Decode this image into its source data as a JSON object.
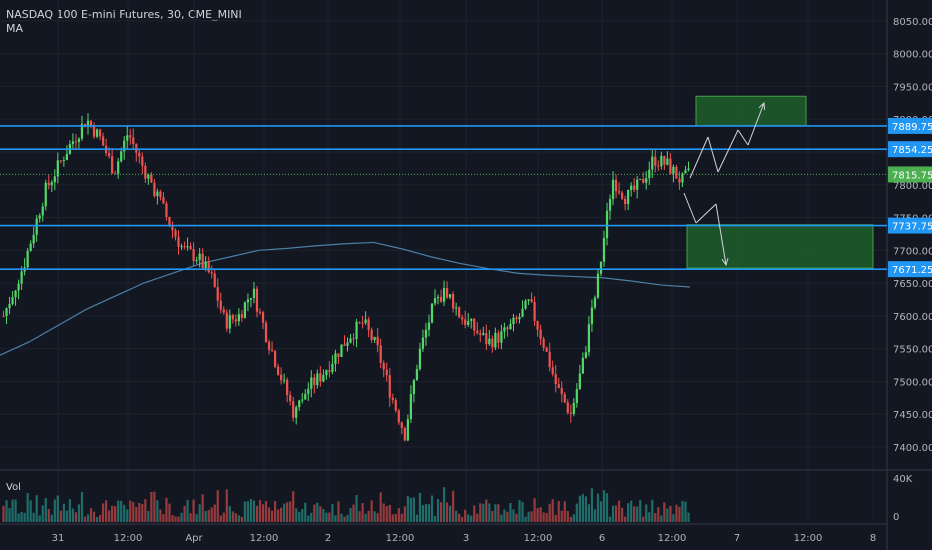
{
  "header": {
    "title": "NASDAQ 100 E-mini Futures, 30, CME_MINI",
    "indicator": "MA"
  },
  "volume_label": "Vol",
  "colors": {
    "background": "#131722",
    "up": "#26a69a",
    "up_bright": "#53d769",
    "down": "#ef5350",
    "level_line": "#2196f3",
    "ma_line": "#4a7fa6",
    "zone_fill": "#1e5e2a",
    "zone_border": "#43a047",
    "current_price_line": "#4caf50",
    "axis_text": "#b2b5be",
    "grid": "#1e222d"
  },
  "chart_data": {
    "type": "candlestick",
    "y_ticks": [
      "8050.00",
      "8000.00",
      "7950.00",
      "7900.00",
      "7850.00",
      "7800.00",
      "7750.00",
      "7700.00",
      "7650.00",
      "7600.00",
      "7550.00",
      "7500.00",
      "7450.00",
      "7400.00"
    ],
    "ylim": [
      7370,
      8075
    ],
    "x_ticks": [
      "31",
      "12:00",
      "Apr",
      "12:00",
      "2",
      "12:00",
      "3",
      "12:00",
      "6",
      "12:00",
      "7",
      "12:00",
      "8"
    ],
    "levels": [
      {
        "label": "7889.75",
        "value": 7889.75
      },
      {
        "label": "7854.25",
        "value": 7854.25
      },
      {
        "label": "7737.75",
        "value": 7737.75
      },
      {
        "label": "7671.25",
        "value": 7671.25
      }
    ],
    "current_price": {
      "label": "7815.75",
      "value": 7815.75
    },
    "zones": [
      {
        "from": 7890,
        "to": 7935
      },
      {
        "from": 7673,
        "to": 7739
      }
    ],
    "volume_ticks": [
      "40K",
      "0"
    ],
    "ma_values": [
      7540,
      7560,
      7585,
      7610,
      7630,
      7650,
      7665,
      7680,
      7690,
      7700,
      7703,
      7707,
      7710,
      7712,
      7702,
      7690,
      7680,
      7672,
      7665,
      7662,
      7660,
      7658,
      7653,
      7647,
      7644
    ],
    "price_path": [
      [
        0,
        7600
      ],
      [
        3,
        7680
      ],
      [
        6,
        7790
      ],
      [
        9,
        7850
      ],
      [
        12,
        7900
      ],
      [
        14,
        7870
      ],
      [
        16,
        7820
      ],
      [
        18,
        7880
      ],
      [
        20,
        7830
      ],
      [
        22,
        7790
      ],
      [
        24,
        7740
      ],
      [
        26,
        7700
      ],
      [
        28,
        7690
      ],
      [
        30,
        7660
      ],
      [
        32,
        7590
      ],
      [
        34,
        7600
      ],
      [
        36,
        7640
      ],
      [
        38,
        7570
      ],
      [
        40,
        7510
      ],
      [
        42,
        7450
      ],
      [
        44,
        7490
      ],
      [
        46,
        7510
      ],
      [
        48,
        7540
      ],
      [
        50,
        7570
      ],
      [
        52,
        7590
      ],
      [
        54,
        7550
      ],
      [
        56,
        7480
      ],
      [
        58,
        7420
      ],
      [
        60,
        7540
      ],
      [
        62,
        7610
      ],
      [
        64,
        7640
      ],
      [
        66,
        7600
      ],
      [
        68,
        7580
      ],
      [
        70,
        7560
      ],
      [
        72,
        7570
      ],
      [
        74,
        7590
      ],
      [
        76,
        7620
      ],
      [
        78,
        7560
      ],
      [
        80,
        7490
      ],
      [
        82,
        7450
      ],
      [
        84,
        7540
      ],
      [
        86,
        7660
      ],
      [
        88,
        7810
      ],
      [
        90,
        7780
      ],
      [
        92,
        7800
      ],
      [
        94,
        7840
      ],
      [
        96,
        7830
      ],
      [
        98,
        7805
      ],
      [
        99,
        7815
      ]
    ],
    "projection_paths": [
      [
        [
          690,
          178
        ],
        [
          708,
          137
        ],
        [
          718,
          172
        ],
        [
          738,
          130
        ],
        [
          748,
          145
        ],
        [
          764,
          103
        ]
      ],
      [
        [
          684,
          193
        ],
        [
          696,
          223
        ],
        [
          716,
          204
        ],
        [
          726,
          265
        ]
      ]
    ]
  }
}
